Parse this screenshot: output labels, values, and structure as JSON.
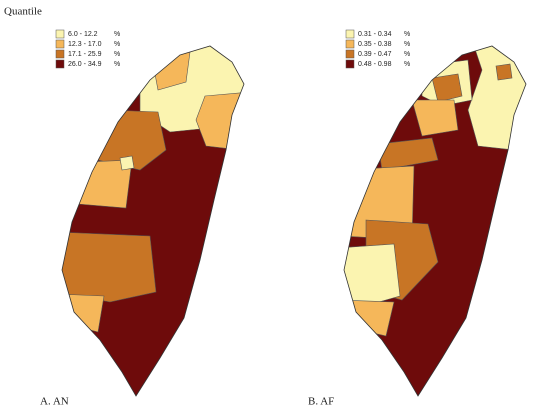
{
  "title": "Quantile",
  "maps": [
    {
      "caption": "A. AN",
      "legend": [
        {
          "label": "6.0 - 12.2",
          "unit": "%",
          "color": "#fbf4b0"
        },
        {
          "label": "12.3 - 17.0",
          "unit": "%",
          "color": "#f5b75a"
        },
        {
          "label": "17.1 - 25.9",
          "unit": "%",
          "color": "#c87525"
        },
        {
          "label": "26.0 - 34.9",
          "unit": "%",
          "color": "#6e0b0b"
        }
      ]
    },
    {
      "caption": "B. AF",
      "legend": [
        {
          "label": "0.31 - 0.34",
          "unit": "%",
          "color": "#fbf4b0"
        },
        {
          "label": "0.35 - 0.38",
          "unit": "%",
          "color": "#f5b75a"
        },
        {
          "label": "0.39 - 0.47",
          "unit": "%",
          "color": "#c87525"
        },
        {
          "label": "0.48 - 0.98",
          "unit": "%",
          "color": "#6e0b0b"
        }
      ]
    }
  ]
}
